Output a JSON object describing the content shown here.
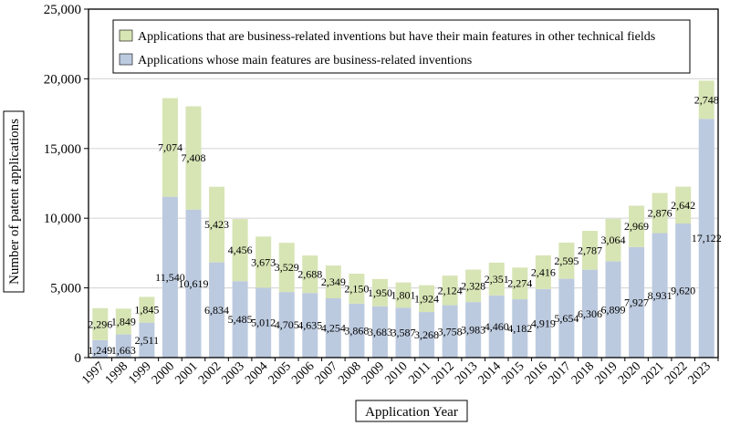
{
  "chart_data": {
    "type": "bar",
    "stacked": true,
    "xlabel": "Application Year",
    "ylabel": "Number of patent applications",
    "ylim": [
      0,
      25000
    ],
    "yticks": [
      "0",
      "5,000",
      "10,000",
      "15,000",
      "20,000",
      "25,000"
    ],
    "ytick_values": [
      0,
      5000,
      10000,
      15000,
      20000,
      25000
    ],
    "grid": true,
    "legend_position": "top",
    "categories": [
      "1997",
      "1998",
      "1999",
      "2000",
      "2001",
      "2002",
      "2003",
      "2004",
      "2005",
      "2006",
      "2007",
      "2008",
      "2009",
      "2010",
      "2011",
      "2012",
      "2013",
      "2014",
      "2015",
      "2016",
      "2017",
      "2018",
      "2019",
      "2020",
      "2021",
      "2022",
      "2023"
    ],
    "series": [
      {
        "name": "Applications whose main features are business-related inventions",
        "color": "#bccadf",
        "values": [
          1249,
          1663,
          2511,
          11540,
          10619,
          6834,
          5485,
          5012,
          4705,
          4635,
          4254,
          3868,
          3683,
          3587,
          3268,
          3758,
          3983,
          4460,
          4182,
          4919,
          5654,
          6306,
          6899,
          7927,
          8931,
          9620,
          17122
        ]
      },
      {
        "name": "Applications that are business-related inventions but have their main features in other technical fields",
        "color": "#d7e4b4",
        "values": [
          2296,
          1849,
          1845,
          7074,
          7408,
          5423,
          4456,
          3673,
          3529,
          2688,
          2349,
          2150,
          1950,
          1801,
          1924,
          2124,
          2328,
          2351,
          2274,
          2416,
          2595,
          2787,
          3064,
          2969,
          2876,
          2642,
          2748
        ]
      }
    ]
  }
}
